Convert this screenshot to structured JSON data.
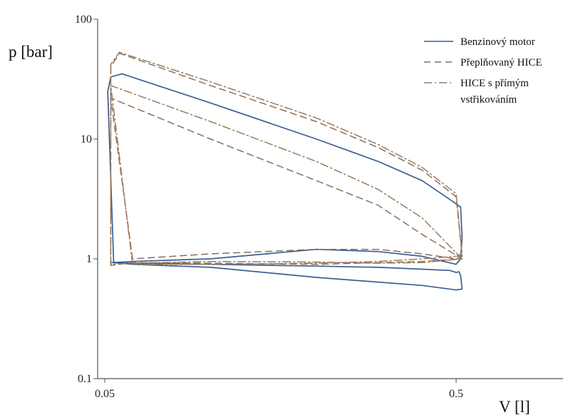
{
  "chart_data": {
    "type": "line",
    "title": "",
    "xlabel": "V [l]",
    "ylabel": "p [bar]",
    "xscale": "log",
    "yscale": "log",
    "xlim": [
      0.05,
      0.8
    ],
    "ylim": [
      0.1,
      100
    ],
    "x_ticks": [
      "0.05",
      "0.5"
    ],
    "y_ticks": [
      "0.1",
      "1",
      "10",
      "100"
    ],
    "grid": false,
    "legend": "top-right",
    "series": [
      {
        "name": "Benzinový motor",
        "style": "solid",
        "color": "#3b5f93",
        "x": [
          0.053,
          0.051,
          0.052,
          0.056,
          0.1,
          0.2,
          0.3,
          0.4,
          0.49,
          0.515,
          0.52,
          0.515,
          0.5,
          0.4,
          0.3,
          0.2,
          0.1,
          0.06,
          0.052,
          0.06,
          0.1,
          0.2,
          0.3,
          0.4,
          0.48,
          0.5,
          0.51,
          0.515,
          0.52,
          0.5,
          0.4,
          0.2,
          0.1,
          0.06,
          0.053
        ],
        "y": [
          0.93,
          25,
          33,
          35,
          20,
          10,
          6.5,
          4.5,
          3.0,
          2.7,
          1.5,
          1.0,
          0.9,
          1.05,
          1.15,
          1.2,
          1.0,
          0.95,
          0.93,
          0.92,
          0.9,
          0.87,
          0.85,
          0.82,
          0.8,
          0.77,
          0.78,
          0.72,
          0.56,
          0.55,
          0.6,
          0.7,
          0.85,
          0.9,
          0.93
        ]
      },
      {
        "name": "Přeplňovaný HICE",
        "style": "dashed",
        "color": "#8a6f5a",
        "x": [
          0.052,
          0.052,
          0.055,
          0.1,
          0.2,
          0.3,
          0.4,
          0.5,
          0.52,
          0.5,
          0.4,
          0.3,
          0.2,
          0.1,
          0.06,
          0.052,
          0.1,
          0.2,
          0.3,
          0.4,
          0.52,
          0.4,
          0.2,
          0.1,
          0.06,
          0.052
        ],
        "y": [
          0.88,
          40,
          52,
          28,
          14,
          8.5,
          5.5,
          3.3,
          1.05,
          1.0,
          1.1,
          1.2,
          1.2,
          1.1,
          1.0,
          22,
          10,
          4.5,
          2.8,
          1.6,
          1.0,
          0.95,
          0.9,
          0.92,
          0.93,
          0.88
        ]
      },
      {
        "name": "HICE s přímým vstřikováním",
        "style": "dashdot",
        "color": "#9a7a5e",
        "x": [
          0.052,
          0.052,
          0.055,
          0.1,
          0.2,
          0.3,
          0.4,
          0.5,
          0.52,
          0.5,
          0.4,
          0.3,
          0.2,
          0.1,
          0.06,
          0.052,
          0.1,
          0.2,
          0.3,
          0.4,
          0.52,
          0.4,
          0.3,
          0.2,
          0.1,
          0.06,
          0.052
        ],
        "y": [
          0.9,
          42,
          53,
          30,
          15,
          9,
          5.8,
          3.5,
          1.1,
          1.05,
          1.0,
          0.95,
          0.92,
          0.9,
          0.9,
          28,
          14,
          6.5,
          3.8,
          2.2,
          1.0,
          0.93,
          0.92,
          0.94,
          0.95,
          0.92,
          0.9
        ]
      }
    ]
  }
}
